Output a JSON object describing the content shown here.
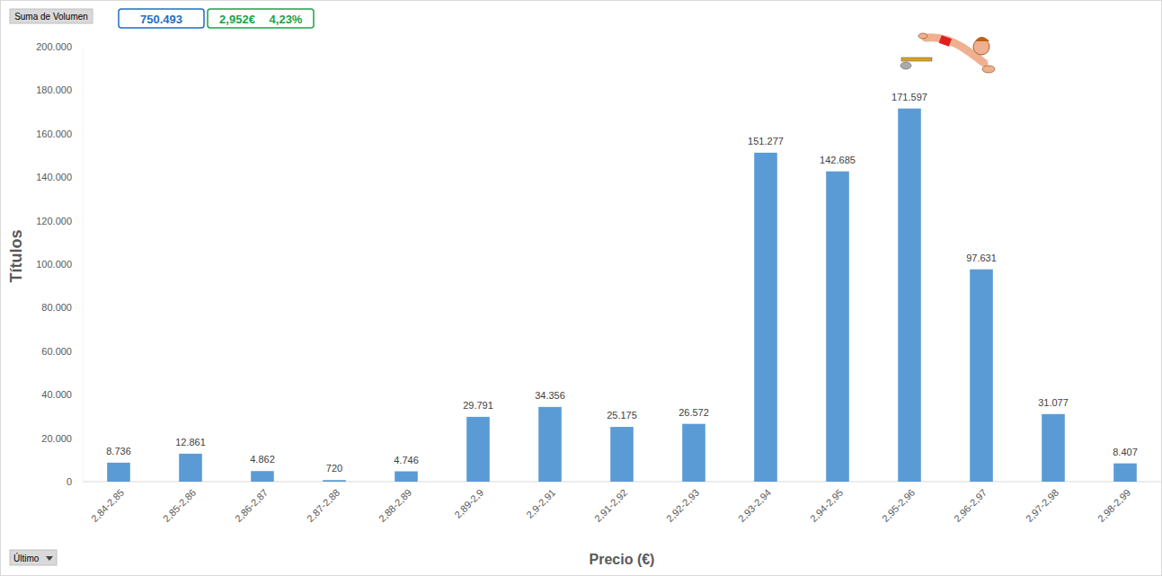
{
  "chart_data": {
    "type": "bar",
    "x_label": "Precio (€)",
    "y_label": "Títulos",
    "annotations": [
      "Suma de Volumen",
      "750.493",
      "2,952€",
      "4,23%",
      "Último"
    ],
    "categories": [
      "2,84-2,85",
      "2,85-2,86",
      "2,86-2,87",
      "2,87-2,88",
      "2,88-2,89",
      "2,89-2,9",
      "2,9-2,91",
      "2,91-2,92",
      "2,92-2,93",
      "2,93-2,94",
      "2,94-2,95",
      "2,95-2,96",
      "2,96-2,97",
      "2,97-2,98",
      "2,98-2,99"
    ],
    "values": [
      8736,
      12861,
      4862,
      720,
      4746,
      29791,
      34356,
      25175,
      26572,
      151277,
      142685,
      171597,
      97631,
      31077,
      8407
    ],
    "value_labels": [
      "8.736",
      "12.861",
      "4.862",
      "720",
      "4.746",
      "29.791",
      "34.356",
      "25.175",
      "26.572",
      "151.277",
      "142.685",
      "171.597",
      "97.631",
      "31.077",
      "8.407"
    ],
    "color": "#5b9bd5",
    "ylim": [
      0,
      200000
    ],
    "yticks": [
      0,
      {
        "value": 20000,
        "label": "20.000"
      },
      {
        "value": 40000,
        "label": "40.000"
      },
      {
        "value": 60000,
        "label": "60.000"
      },
      {
        "value": 80000,
        "label": "80.000"
      },
      {
        "value": 100000,
        "label": "100.000"
      },
      {
        "value": 120000,
        "label": "120.000"
      },
      {
        "value": 140000,
        "label": "140.000"
      },
      {
        "value": 160000,
        "label": "160.000"
      },
      {
        "value": 180000,
        "label": "180.000"
      },
      {
        "value": 200000,
        "label": "200.000"
      }
    ],
    "grid": false,
    "data_labels": true
  }
}
